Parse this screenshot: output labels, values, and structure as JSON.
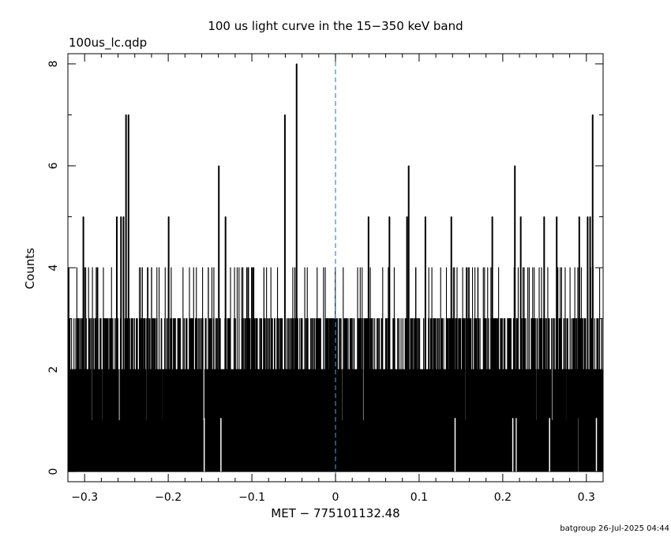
{
  "chart_data": {
    "type": "bar",
    "title": "100 us light curve in the 15−350 keV band",
    "subtitle": "100us_lc.qdp",
    "xlabel": "MET − 775101132.48",
    "ylabel": "Counts",
    "footer": "batgroup 26-Jul-2025 04:44",
    "xlim": [
      -0.32,
      0.32
    ],
    "ylim": [
      -0.2,
      8.2
    ],
    "x_ticks": [
      -0.3,
      -0.2,
      -0.1,
      0,
      0.1,
      0.2,
      0.3
    ],
    "x_tick_labels": [
      "−0.3",
      "−0.2",
      "−0.1",
      "0",
      "0.1",
      "0.2",
      "0.3"
    ],
    "y_ticks": [
      0,
      2,
      4,
      6,
      8
    ],
    "y_tick_labels": [
      "0",
      "2",
      "4",
      "6",
      "8"
    ],
    "bin_width": 0.0001,
    "x_start": -0.32,
    "x_end": 0.32,
    "series": [
      {
        "values_note": "Counts per 100 us bin; dense binned light curve, typically 0-3 counts with sparse spikes.",
        "spikes": [
          {
            "x": -0.0465,
            "y": 8
          },
          {
            "x": -0.0605,
            "y": 7
          },
          {
            "x": -0.2505,
            "y": 7
          },
          {
            "x": -0.2475,
            "y": 7
          },
          {
            "x": 0.3075,
            "y": 7
          },
          {
            "x": -0.1395,
            "y": 6
          },
          {
            "x": 0.0875,
            "y": 6
          },
          {
            "x": 0.2145,
            "y": 6
          },
          {
            "x": -0.3015,
            "y": 5
          },
          {
            "x": -0.2615,
            "y": 5
          },
          {
            "x": -0.2565,
            "y": 5
          },
          {
            "x": -0.2535,
            "y": 5
          },
          {
            "x": -0.1995,
            "y": 5
          },
          {
            "x": -0.1315,
            "y": 5
          },
          {
            "x": 0.0395,
            "y": 5
          },
          {
            "x": 0.0645,
            "y": 5
          },
          {
            "x": 0.0855,
            "y": 5
          },
          {
            "x": 0.1075,
            "y": 5
          },
          {
            "x": 0.1385,
            "y": 5
          },
          {
            "x": 0.1875,
            "y": 5
          },
          {
            "x": 0.2215,
            "y": 5
          },
          {
            "x": 0.2495,
            "y": 5
          },
          {
            "x": 0.2645,
            "y": 5
          },
          {
            "x": 0.2915,
            "y": 5
          },
          {
            "x": 0.3015,
            "y": 5
          },
          {
            "x": 0.3045,
            "y": 5
          }
        ],
        "zero_gaps": [
          -0.157,
          -0.137,
          0.143,
          0.212,
          0.216,
          0.256,
          0.291,
          0.312
        ]
      }
    ],
    "reference_line": {
      "x": 0,
      "style": "dashed",
      "color": "#1e90ff"
    },
    "grid": false,
    "legend": "none"
  }
}
